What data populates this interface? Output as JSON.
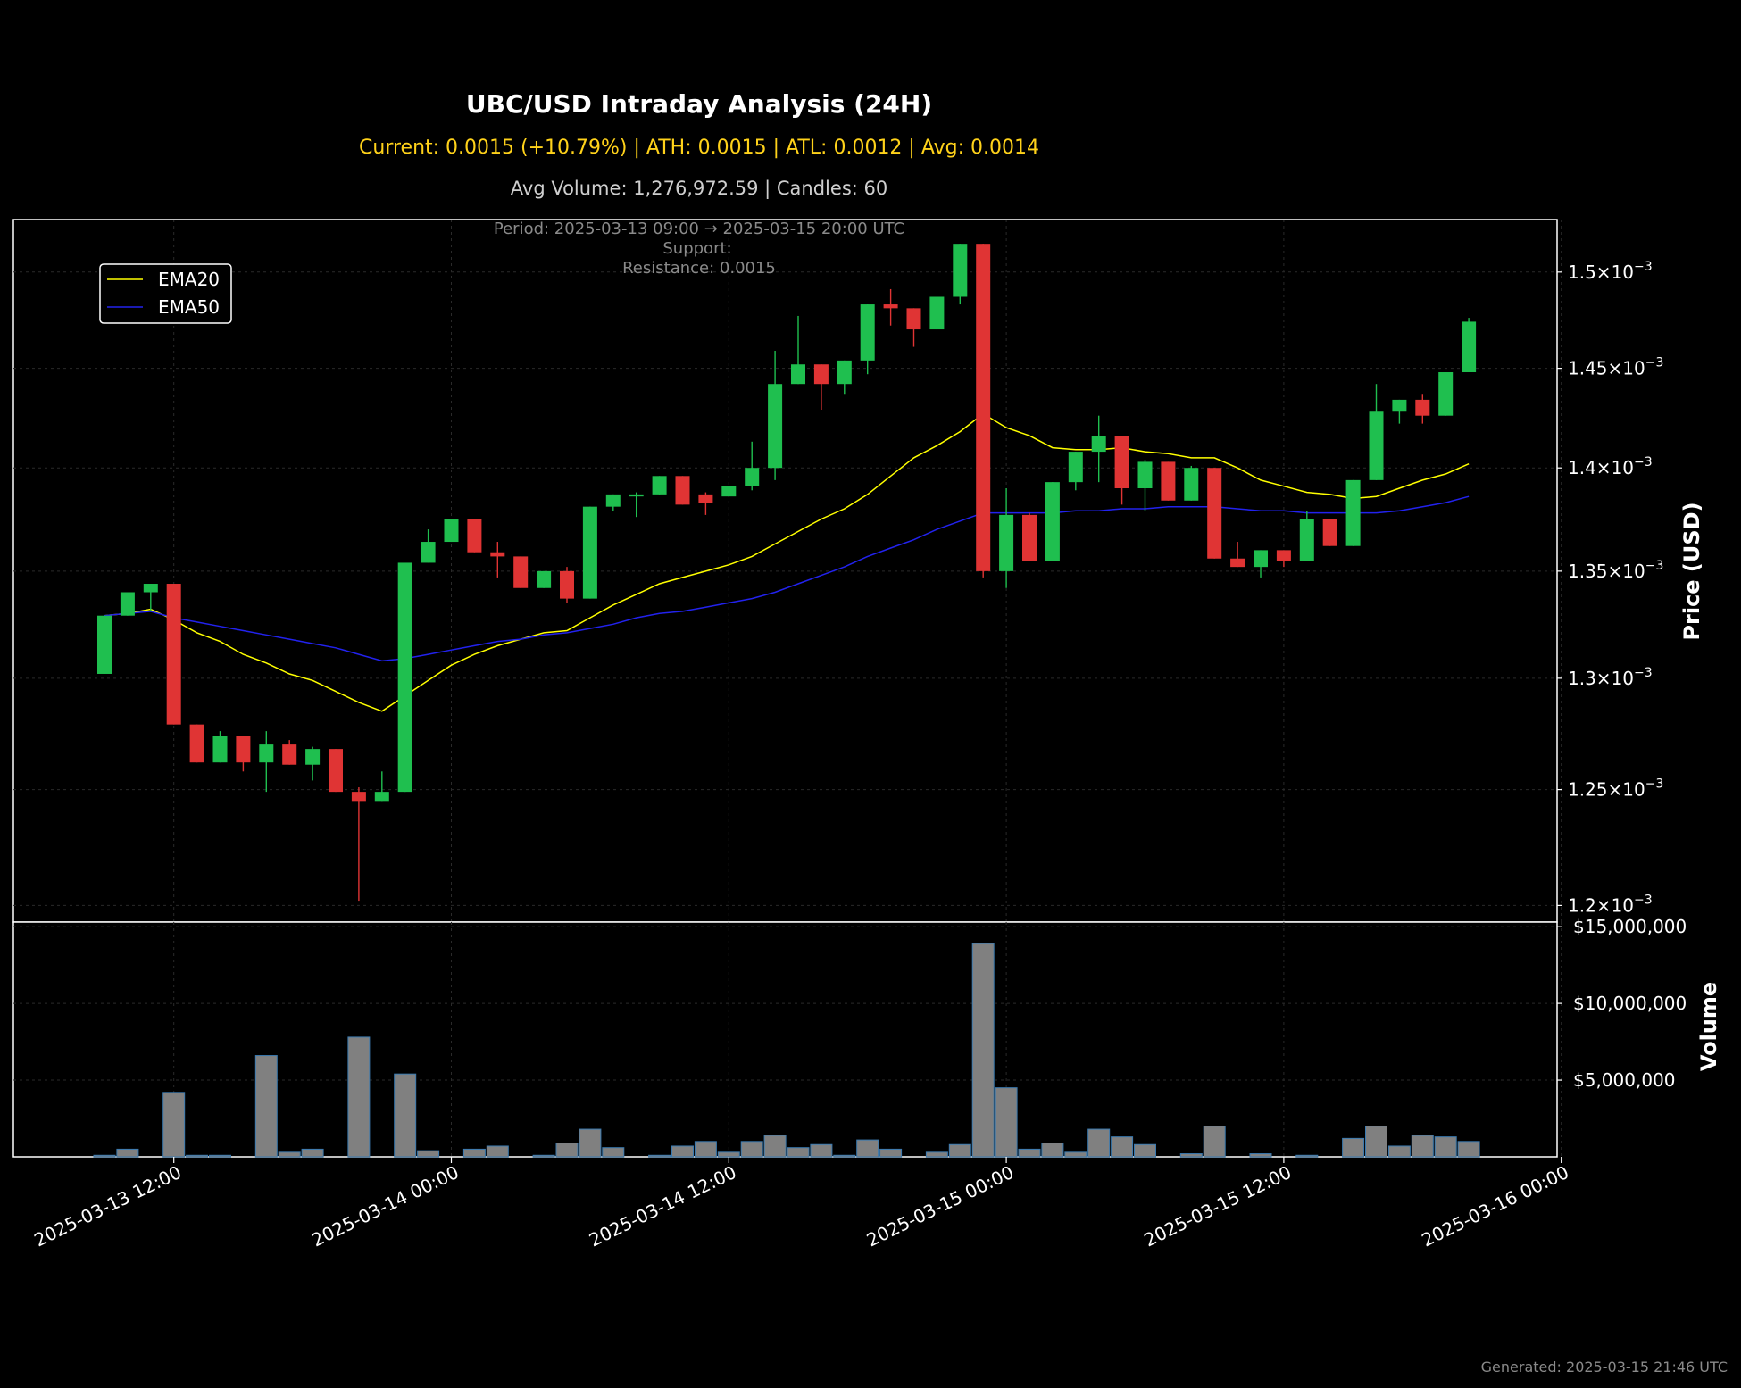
{
  "chart": {
    "title": "UBC/USD Intraday Analysis (24H)",
    "subtitle_stats": "Current: 0.0015 (+10.79%) | ATH: 0.0015 | ATL: 0.0012 | Avg: 0.0014",
    "subtitle_volume": "Avg Volume: 1,276,972.59 | Candles: 60",
    "annotation": {
      "period": "Period: 2025-03-13 09:00 → 2025-03-15 20:00 UTC",
      "support": "Support:",
      "resistance": "Resistance: 0.0015"
    },
    "price_axis_label": "Price (USD)",
    "volume_axis_label": "Volume",
    "footer": "Generated: 2025-03-15 21:46 UTC",
    "legend": [
      "EMA20",
      "EMA50"
    ]
  },
  "chart_data": {
    "type": "candlestick",
    "x_start": "2025-03-13 09:00",
    "interval_hours": 1,
    "x_ticks": [
      "2025-03-13 12:00",
      "2025-03-14 00:00",
      "2025-03-14 12:00",
      "2025-03-15 00:00",
      "2025-03-15 12:00",
      "2025-03-16 00:00"
    ],
    "y_scale": "log",
    "price_ylim": [
      0.001193,
      0.001528
    ],
    "price_ticks": [
      {
        "value": 0.0012,
        "mantissa": "1.2"
      },
      {
        "value": 0.00125,
        "mantissa": "1.25"
      },
      {
        "value": 0.0013,
        "mantissa": "1.3"
      },
      {
        "value": 0.00135,
        "mantissa": "1.35"
      },
      {
        "value": 0.0014,
        "mantissa": "1.4"
      },
      {
        "value": 0.00145,
        "mantissa": "1.45"
      },
      {
        "value": 0.0015,
        "mantissa": "1.5"
      }
    ],
    "price_tick_suffix": "×10",
    "price_tick_exponent": "−3",
    "volume_ylim": [
      0,
      15300000
    ],
    "volume_ticks": [
      {
        "value": 5000000,
        "label": "$5,000,000"
      },
      {
        "value": 10000000,
        "label": "$10,000,000"
      },
      {
        "value": 15000000,
        "label": "$15,000,000"
      }
    ],
    "colors": {
      "up": "#1fbf4f",
      "down": "#e03434",
      "volume": "#808080",
      "volume_edge": "#3a7ab0",
      "ema20": "#ffff00",
      "ema50": "#2222ee"
    },
    "candles": [
      [
        0.001302,
        0.001329,
        0.001302,
        0.001329
      ],
      [
        0.001329,
        0.00134,
        0.001329,
        0.00134
      ],
      [
        0.00134,
        0.001344,
        0.001331,
        0.001344
      ],
      [
        0.001344,
        0.001344,
        0.001279,
        0.001279
      ],
      [
        0.001279,
        0.001279,
        0.001262,
        0.001262
      ],
      [
        0.001262,
        0.001276,
        0.001262,
        0.001274
      ],
      [
        0.001274,
        0.001274,
        0.001258,
        0.001262
      ],
      [
        0.001262,
        0.001276,
        0.001249,
        0.00127
      ],
      [
        0.00127,
        0.001272,
        0.001261,
        0.001261
      ],
      [
        0.001261,
        0.001269,
        0.001254,
        0.001268
      ],
      [
        0.001268,
        0.001268,
        0.001249,
        0.001249
      ],
      [
        0.001249,
        0.001251,
        0.001202,
        0.001245
      ],
      [
        0.001245,
        0.001258,
        0.001245,
        0.001249
      ],
      [
        0.001249,
        0.001354,
        0.001249,
        0.001354
      ],
      [
        0.001354,
        0.00137,
        0.001354,
        0.001364
      ],
      [
        0.001364,
        0.001375,
        0.001364,
        0.001375
      ],
      [
        0.001375,
        0.001375,
        0.001359,
        0.001359
      ],
      [
        0.001359,
        0.001364,
        0.001347,
        0.001357
      ],
      [
        0.001357,
        0.001357,
        0.001342,
        0.001342
      ],
      [
        0.001342,
        0.00135,
        0.001342,
        0.00135
      ],
      [
        0.00135,
        0.001352,
        0.001335,
        0.001337
      ],
      [
        0.001337,
        0.001381,
        0.001337,
        0.001381
      ],
      [
        0.001381,
        0.001387,
        0.001379,
        0.001387
      ],
      [
        0.001386,
        0.001388,
        0.001376,
        0.001387
      ],
      [
        0.001387,
        0.001396,
        0.001387,
        0.001396
      ],
      [
        0.001396,
        0.001396,
        0.001382,
        0.001382
      ],
      [
        0.001387,
        0.001388,
        0.001377,
        0.001383
      ],
      [
        0.001386,
        0.001391,
        0.001386,
        0.001391
      ],
      [
        0.001391,
        0.001413,
        0.001389,
        0.0014
      ],
      [
        0.0014,
        0.001459,
        0.001394,
        0.001442
      ],
      [
        0.001442,
        0.001477,
        0.001442,
        0.001452
      ],
      [
        0.001452,
        0.001452,
        0.001429,
        0.001442
      ],
      [
        0.001442,
        0.001454,
        0.001437,
        0.001454
      ],
      [
        0.001454,
        0.001483,
        0.001447,
        0.001483
      ],
      [
        0.001483,
        0.001491,
        0.001472,
        0.001481
      ],
      [
        0.001481,
        0.001481,
        0.001461,
        0.00147
      ],
      [
        0.00147,
        0.001487,
        0.00147,
        0.001487
      ],
      [
        0.001487,
        0.001515,
        0.001483,
        0.001515
      ],
      [
        0.001515,
        0.001515,
        0.001347,
        0.00135
      ],
      [
        0.00135,
        0.00139,
        0.001342,
        0.001377
      ],
      [
        0.001377,
        0.001378,
        0.001355,
        0.001355
      ],
      [
        0.001355,
        0.001393,
        0.001355,
        0.001393
      ],
      [
        0.001393,
        0.001408,
        0.001389,
        0.001408
      ],
      [
        0.001408,
        0.001426,
        0.001393,
        0.001416
      ],
      [
        0.001416,
        0.001416,
        0.001382,
        0.00139
      ],
      [
        0.00139,
        0.001404,
        0.001379,
        0.001403
      ],
      [
        0.001403,
        0.001403,
        0.001384,
        0.001384
      ],
      [
        0.001384,
        0.001401,
        0.001384,
        0.0014
      ],
      [
        0.0014,
        0.0014,
        0.001356,
        0.001356
      ],
      [
        0.001356,
        0.001364,
        0.001352,
        0.001352
      ],
      [
        0.001352,
        0.00136,
        0.001347,
        0.00136
      ],
      [
        0.00136,
        0.00136,
        0.001352,
        0.001355
      ],
      [
        0.001355,
        0.001379,
        0.001355,
        0.001375
      ],
      [
        0.001375,
        0.001375,
        0.001362,
        0.001362
      ],
      [
        0.001362,
        0.001394,
        0.001362,
        0.001394
      ],
      [
        0.001394,
        0.001442,
        0.001394,
        0.001428
      ],
      [
        0.001428,
        0.001434,
        0.001422,
        0.001434
      ],
      [
        0.001434,
        0.001437,
        0.001422,
        0.001426
      ],
      [
        0.001426,
        0.001448,
        0.001426,
        0.001448
      ],
      [
        0.001448,
        0.001476,
        0.001448,
        0.001474
      ]
    ],
    "volumes": [
      100000,
      500000,
      0,
      4200000,
      100000,
      100000,
      0,
      6600000,
      300000,
      500000,
      0,
      7800000,
      0,
      5400000,
      400000,
      0,
      500000,
      700000,
      0,
      100000,
      900000,
      1800000,
      600000,
      0,
      100000,
      700000,
      1000000,
      300000,
      1000000,
      1400000,
      600000,
      800000,
      100000,
      1100000,
      500000,
      0,
      300000,
      800000,
      13900000,
      4500000,
      500000,
      900000,
      300000,
      1800000,
      1300000,
      800000,
      0,
      200000,
      2000000,
      0,
      200000,
      0,
      100000,
      0,
      1200000,
      2000000,
      700000,
      1400000,
      1300000,
      1000000
    ],
    "ema20": [
      0.001329,
      0.00133,
      0.001332,
      0.001327,
      0.001321,
      0.001317,
      0.001311,
      0.001307,
      0.001302,
      0.001299,
      0.001294,
      0.001289,
      0.001285,
      0.001292,
      0.001299,
      0.001306,
      0.001311,
      0.001315,
      0.001318,
      0.001321,
      0.001322,
      0.001328,
      0.001334,
      0.001339,
      0.001344,
      0.001347,
      0.00135,
      0.001353,
      0.001357,
      0.001363,
      0.001369,
      0.001375,
      0.00138,
      0.001387,
      0.001396,
      0.001405,
      0.001411,
      0.001418,
      0.001427,
      0.00142,
      0.001416,
      0.00141,
      0.001409,
      0.001409,
      0.00141,
      0.001408,
      0.001407,
      0.001405,
      0.001405,
      0.0014,
      0.001394,
      0.001391,
      0.001388,
      0.001387,
      0.001385,
      0.001386,
      0.00139,
      0.001394,
      0.001397,
      0.001402
    ],
    "ema50": [
      0.001329,
      0.00133,
      0.001331,
      0.001328,
      0.001326,
      0.001324,
      0.001322,
      0.00132,
      0.001318,
      0.001316,
      0.001314,
      0.001311,
      0.001308,
      0.001309,
      0.001311,
      0.001313,
      0.001315,
      0.001317,
      0.001318,
      0.00132,
      0.001321,
      0.001323,
      0.001325,
      0.001328,
      0.00133,
      0.001331,
      0.001333,
      0.001335,
      0.001337,
      0.00134,
      0.001344,
      0.001348,
      0.001352,
      0.001357,
      0.001361,
      0.001365,
      0.00137,
      0.001374,
      0.001378,
      0.001378,
      0.001378,
      0.001378,
      0.001379,
      0.001379,
      0.00138,
      0.00138,
      0.001381,
      0.001381,
      0.001381,
      0.00138,
      0.001379,
      0.001379,
      0.001378,
      0.001378,
      0.001378,
      0.001378,
      0.001379,
      0.001381,
      0.001383,
      0.001386
    ]
  }
}
